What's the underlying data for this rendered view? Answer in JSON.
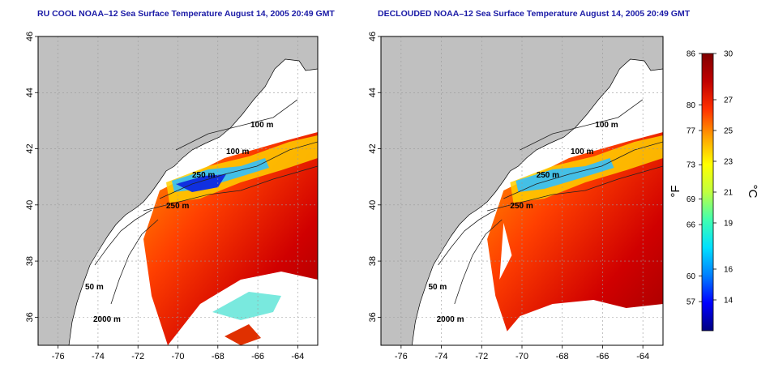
{
  "panels": [
    {
      "title": "RU COOL NOAA–12 Sea Surface Temperature August 14, 2005 20:49 GMT",
      "x_ticks": [
        "-76",
        "-74",
        "-72",
        "-70",
        "-68",
        "-66",
        "-64"
      ],
      "y_ticks": [
        "36",
        "38",
        "40",
        "42",
        "44",
        "46"
      ],
      "contour_labels": [
        "100 m",
        "100 m",
        "250 m",
        "250 m",
        "50 m",
        "2000 m"
      ]
    },
    {
      "title": "DECLOUDED NOAA–12 Sea Surface Temperature August 14, 2005 20:49 GMT",
      "x_ticks": [
        "-76",
        "-74",
        "-72",
        "-70",
        "-68",
        "-66",
        "-64"
      ],
      "y_ticks": [
        "36",
        "38",
        "40",
        "42",
        "44",
        "46"
      ],
      "contour_labels": [
        "100 m",
        "100 m",
        "250 m",
        "250 m",
        "50 m",
        "2000 m"
      ]
    }
  ],
  "map_extent": {
    "lon": [
      -77,
      -63
    ],
    "lat": [
      35,
      46
    ]
  },
  "colorbar": {
    "fahrenheit_ticks": [
      "86",
      "80",
      "77",
      "73",
      "69",
      "66",
      "60",
      "57"
    ],
    "celsius_ticks": [
      "30",
      "27",
      "25",
      "23",
      "21",
      "19",
      "16",
      "14"
    ],
    "fahrenheit_label": "°F",
    "celsius_label": "°C",
    "range_c": [
      12,
      30
    ],
    "colors": [
      "#000080",
      "#0000ff",
      "#0080ff",
      "#00e0ff",
      "#40ffb0",
      "#c0ff40",
      "#ffff00",
      "#ffa000",
      "#ff3000",
      "#c00000",
      "#800000"
    ]
  },
  "colors": {
    "land": "#c0c0c0",
    "title": "#1a1aa6",
    "grid": "#9a9a9a"
  }
}
